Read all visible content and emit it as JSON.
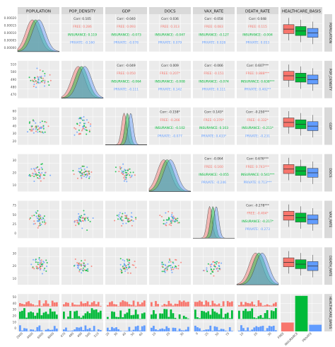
{
  "chart_data": {
    "type": "scatter",
    "variables": [
      "POPULATION",
      "POP_DENSITY",
      "GDP",
      "DOCS",
      "VAX_RATE",
      "DEATH_RATE",
      "HEALTHCARE_BASIS"
    ],
    "groups": [
      "FREE",
      "INSURANCE",
      "PRIVATE"
    ],
    "group_colors": {
      "FREE": "#F8766D",
      "INSURANCE": "#00BA38",
      "PRIVATE": "#619CFF"
    },
    "ticks": {
      "POPULATION": [
        "2000",
        "4000",
        "6000",
        "8000"
      ],
      "POP_DENSITY": [
        "470",
        "480",
        "490",
        "500",
        "510"
      ],
      "GDP": [
        "20",
        "30",
        "40",
        "50",
        "60"
      ],
      "DOCS": [
        "10",
        "20",
        "30"
      ],
      "VAX_RATE": [
        "0",
        "25",
        "50",
        "75"
      ],
      "DEATH_RATE": [
        "10",
        "20",
        "30"
      ]
    },
    "density_yticks": [
      "0.00000",
      "0.00005",
      "0.00010",
      "0.00015",
      "0.00020"
    ],
    "hist_yticks": [
      "0",
      "10",
      "20",
      "30",
      "40",
      "50"
    ],
    "corr_label": "Corr:",
    "correlations": [
      {
        "pair": [
          "POP_DENSITY",
          "POPULATION"
        ],
        "overall": "0.105",
        "FREE": "0.286",
        "INSURANCE": "0.119",
        "PRIVATE": "-0.160"
      },
      {
        "pair": [
          "GDP",
          "POPULATION"
        ],
        "overall": "-0.040",
        "FREE": "0.093",
        "INSURANCE": "-0.073",
        "PRIVATE": "-0.078"
      },
      {
        "pair": [
          "DOCS",
          "POPULATION"
        ],
        "overall": "0.036",
        "FREE": "0.313",
        "INSURANCE": "-0.047",
        "PRIVATE": "0.079"
      },
      {
        "pair": [
          "VAX_RATE",
          "POPULATION"
        ],
        "overall": "-0.058",
        "FREE": "0.083",
        "INSURANCE": "-0.127",
        "PRIVATE": "0.028"
      },
      {
        "pair": [
          "DEATH_RATE",
          "POPULATION"
        ],
        "overall": "0.048",
        "FREE": "0.115",
        "INSURANCE": "-0.004",
        "PRIVATE": "0.053"
      },
      {
        "pair": [
          "GDP",
          "POP_DENSITY"
        ],
        "overall": "-0.049",
        "FREE": "0.050",
        "INSURANCE": "-0.064",
        "PRIVATE": "-0.111"
      },
      {
        "pair": [
          "DOCS",
          "POP_DENSITY"
        ],
        "overall": "0.009",
        "FREE": "0.207*",
        "INSURANCE": "-0.008",
        "PRIVATE": "0.142"
      },
      {
        "pair": [
          "VAX_RATE",
          "POP_DENSITY"
        ],
        "overall": "-0.066",
        "FREE": "-0.151",
        "INSURANCE": "-0.074",
        "PRIVATE": "0.111"
      },
      {
        "pair": [
          "DEATH_RATE",
          "POP_DENSITY"
        ],
        "overall": "0.607***",
        "FREE": "0.888***",
        "INSURANCE": "0.638***",
        "PRIVATE": "0.402**"
      },
      {
        "pair": [
          "DOCS",
          "GDP"
        ],
        "overall": "-0.158*",
        "FREE": "-0.266",
        "INSURANCE": "-0.102",
        "PRIVATE": "-0.077"
      },
      {
        "pair": [
          "VAX_RATE",
          "GDP"
        ],
        "overall": "0.143*",
        "FREE": "0.376*",
        "INSURANCE": "0.103",
        "PRIVATE": "0.433*"
      },
      {
        "pair": [
          "DEATH_RATE",
          "GDP"
        ],
        "overall": "-0.250***",
        "FREE": "-0.332*",
        "INSURANCE": "-0.211*",
        "PRIVATE": "-0.231"
      },
      {
        "pair": [
          "VAX_RATE",
          "DOCS"
        ],
        "overall": "-0.064",
        "FREE": "0.160",
        "INSURANCE": "-0.055",
        "PRIVATE": "-0.246"
      },
      {
        "pair": [
          "DEATH_RATE",
          "DOCS"
        ],
        "overall": "0.676***",
        "FREE": "0.743***",
        "INSURANCE": "0.541***",
        "PRIVATE": "0.713***"
      },
      {
        "pair": [
          "DEATH_RATE",
          "VAX_RATE"
        ],
        "overall": "-0.278***",
        "FREE": "-0.404*",
        "INSURANCE": "-0.217*",
        "PRIVATE": "-0.273"
      }
    ],
    "healthcare_counts": {
      "FREE": 12,
      "INSURANCE": 48,
      "PRIVATE": 9
    },
    "grid": true,
    "legend": "none"
  }
}
